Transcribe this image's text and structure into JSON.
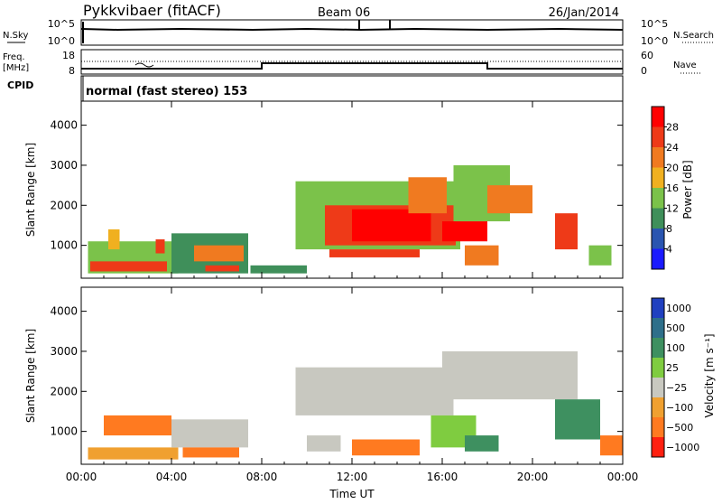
{
  "header": {
    "station": "Pykkvibaer (fitACF)",
    "beam": "Beam 06",
    "date": "26/Jan/2014"
  },
  "noise_panel": {
    "left_label": "N.Sky",
    "right_label": "N.Search",
    "left_ticks": [
      "10^5",
      "10^0"
    ],
    "right_ticks": [
      "10^5",
      "10^0"
    ]
  },
  "freq_panel": {
    "left_label": "Freq.",
    "left_unit": "[MHz]",
    "right_label": "Nave",
    "left_ticks": [
      "18",
      "8"
    ],
    "right_ticks": [
      "60",
      "0"
    ],
    "cpid_label": "CPID"
  },
  "cpid_panel": {
    "text": "normal (fast stereo) 153"
  },
  "colors": {
    "power": [
      "#1a1aff",
      "#2a55b0",
      "#3f8f5a",
      "#7bc24a",
      "#f0b020",
      "#f07a20",
      "#ee3a18",
      "#ff0000"
    ],
    "velocity": [
      "#2040c0",
      "#2e6f8a",
      "#3e9060",
      "#7fcc40",
      "#c8c8c0",
      "#f0a030",
      "#ff7a20",
      "#ff2010"
    ]
  },
  "chart_data": [
    {
      "type": "heatmap",
      "name": "power",
      "xlabel": "",
      "ylabel": "Slant Range [km]",
      "x_ticks": [
        "00:00",
        "04:00",
        "08:00",
        "12:00",
        "16:00",
        "20:00",
        "00:00"
      ],
      "x_hours": [
        0,
        24
      ],
      "yticks": [
        1000,
        2000,
        3000,
        4000
      ],
      "ylim": [
        180,
        4600
      ],
      "colorbar": {
        "label": "Power [dB]",
        "ticks": [
          4,
          8,
          12,
          16,
          20,
          24,
          28
        ],
        "range": [
          0,
          32
        ]
      },
      "regions": [
        {
          "t0": 0.3,
          "t1": 4.3,
          "r0": 300,
          "r1": 1100,
          "v": 12
        },
        {
          "t0": 0.4,
          "t1": 3.8,
          "r0": 350,
          "r1": 600,
          "v": 24
        },
        {
          "t0": 1.2,
          "t1": 1.7,
          "r0": 900,
          "r1": 1400,
          "v": 18
        },
        {
          "t0": 3.3,
          "t1": 3.7,
          "r0": 800,
          "r1": 1150,
          "v": 26
        },
        {
          "t0": 4.0,
          "t1": 7.4,
          "r0": 300,
          "r1": 1300,
          "v": 11
        },
        {
          "t0": 5.0,
          "t1": 7.2,
          "r0": 600,
          "r1": 1000,
          "v": 20
        },
        {
          "t0": 5.5,
          "t1": 7.0,
          "r0": 350,
          "r1": 500,
          "v": 26
        },
        {
          "t0": 7.5,
          "t1": 10.0,
          "r0": 300,
          "r1": 500,
          "v": 8
        },
        {
          "t0": 9.5,
          "t1": 16.8,
          "r0": 900,
          "r1": 2600,
          "v": 14
        },
        {
          "t0": 10.8,
          "t1": 16.6,
          "r0": 1000,
          "r1": 2000,
          "v": 25
        },
        {
          "t0": 11.0,
          "t1": 15.0,
          "r0": 700,
          "r1": 900,
          "v": 24
        },
        {
          "t0": 12.0,
          "t1": 15.5,
          "r0": 1100,
          "r1": 1900,
          "v": 29
        },
        {
          "t0": 14.5,
          "t1": 16.2,
          "r0": 1800,
          "r1": 2700,
          "v": 20
        },
        {
          "t0": 16.0,
          "t1": 18.0,
          "r0": 1100,
          "r1": 1600,
          "v": 28
        },
        {
          "t0": 16.5,
          "t1": 19.0,
          "r0": 1600,
          "r1": 3000,
          "v": 12
        },
        {
          "t0": 17.0,
          "t1": 18.5,
          "r0": 500,
          "r1": 1000,
          "v": 20
        },
        {
          "t0": 18.0,
          "t1": 20.0,
          "r0": 1800,
          "r1": 2500,
          "v": 22
        },
        {
          "t0": 21.0,
          "t1": 22.0,
          "r0": 900,
          "r1": 1800,
          "v": 26
        },
        {
          "t0": 22.5,
          "t1": 23.5,
          "r0": 500,
          "r1": 1000,
          "v": 14
        }
      ]
    },
    {
      "type": "heatmap",
      "name": "velocity",
      "xlabel": "Time UT",
      "ylabel": "Slant Range [km]",
      "x_ticks": [
        "00:00",
        "04:00",
        "08:00",
        "12:00",
        "16:00",
        "20:00",
        "00:00"
      ],
      "x_hours": [
        0,
        24
      ],
      "yticks": [
        1000,
        2000,
        3000,
        4000
      ],
      "ylim": [
        180,
        4600
      ],
      "colorbar": {
        "label": "Velocity [m s⁻¹]",
        "ticks": [
          "1000",
          "500",
          "100",
          "25",
          "−25",
          "−100",
          "−500",
          "−1000"
        ]
      },
      "regions": [
        {
          "t0": 0.3,
          "t1": 4.3,
          "r0": 300,
          "r1": 600,
          "v": 5
        },
        {
          "t0": 1.0,
          "t1": 4.0,
          "r0": 900,
          "r1": 1400,
          "v": 6
        },
        {
          "t0": 4.0,
          "t1": 7.4,
          "r0": 600,
          "r1": 1300,
          "v": 4
        },
        {
          "t0": 4.5,
          "t1": 7.0,
          "r0": 350,
          "r1": 600,
          "v": 6
        },
        {
          "t0": 9.5,
          "t1": 16.5,
          "r0": 1400,
          "r1": 2600,
          "v": 4
        },
        {
          "t0": 10.0,
          "t1": 11.5,
          "r0": 500,
          "r1": 900,
          "v": 4
        },
        {
          "t0": 12.0,
          "t1": 15.0,
          "r0": 400,
          "r1": 800,
          "v": 6
        },
        {
          "t0": 15.5,
          "t1": 17.5,
          "r0": 600,
          "r1": 1400,
          "v": 3
        },
        {
          "t0": 17.0,
          "t1": 18.5,
          "r0": 500,
          "r1": 900,
          "v": 2
        },
        {
          "t0": 16.0,
          "t1": 22.0,
          "r0": 1800,
          "r1": 3000,
          "v": 4
        },
        {
          "t0": 21.0,
          "t1": 23.0,
          "r0": 800,
          "r1": 1800,
          "v": 2
        },
        {
          "t0": 23.0,
          "t1": 24.0,
          "r0": 400,
          "r1": 900,
          "v": 6
        }
      ]
    }
  ]
}
